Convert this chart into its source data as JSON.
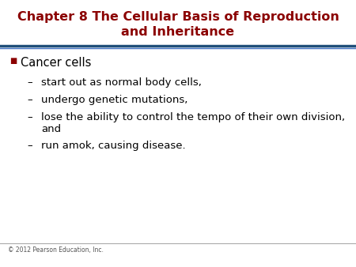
{
  "title_line1": "Chapter 8 The Cellular Basis of Reproduction",
  "title_line2": "and Inheritance",
  "title_color": "#8B0000",
  "background_color": "#FFFFFF",
  "separator_color_top": "#1F4E79",
  "separator_color_bottom": "#4472C4",
  "bullet_color": "#8B0000",
  "bullet_text": "Cancer cells",
  "sub_bullets": [
    "start out as normal body cells,",
    "undergo genetic mutations,",
    "lose the ability to control the tempo of their own division,\nand",
    "run amok, causing disease."
  ],
  "footer_text": "© 2012 Pearson Education, Inc.",
  "footer_color": "#555555",
  "text_color": "#000000",
  "title_fontsize": 11.5,
  "bullet_fontsize": 10.5,
  "sub_bullet_fontsize": 9.5
}
